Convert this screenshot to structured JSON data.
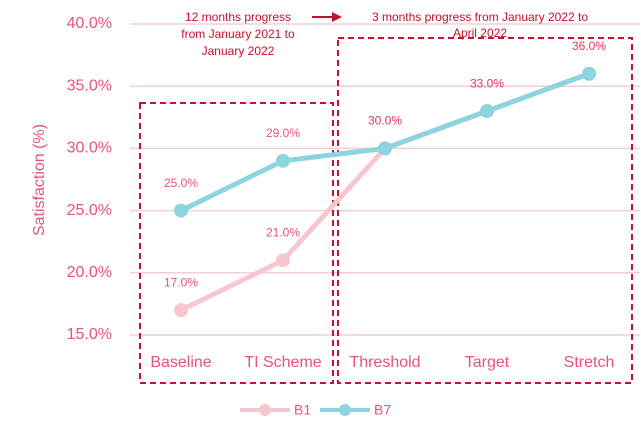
{
  "chart_data": {
    "type": "line",
    "y_label": "Satisfaction (%)",
    "categories": [
      "Baseline",
      "TI Scheme",
      "Threshold",
      "Target",
      "Stretch"
    ],
    "series": [
      {
        "name": "B1",
        "color": "#f7c6d0",
        "values": [
          17,
          21,
          30,
          33,
          36
        ],
        "value_labels": [
          "17.0%",
          "21.0%",
          "30.0%",
          "33.0%",
          "36.0%"
        ]
      },
      {
        "name": "B7",
        "color": "#8ed4e0",
        "values": [
          25,
          29,
          30,
          33,
          36
        ],
        "value_labels": [
          "25.0%",
          "29.0%",
          "30.0%",
          "33.0%",
          "36.0%"
        ]
      }
    ],
    "ylim": [
      15,
      40
    ],
    "yticks": [
      {
        "value": 15,
        "label": "15.0%"
      },
      {
        "value": 20,
        "label": "20.0%"
      },
      {
        "value": 25,
        "label": "25.0%"
      },
      {
        "value": 30,
        "label": "30.0%"
      },
      {
        "value": 35,
        "label": "35.0%"
      },
      {
        "value": 40,
        "label": "40.0%"
      }
    ],
    "grid": true,
    "legend": "bottom",
    "annotations": [
      [
        "12 months progress",
        "from January 2021 to",
        "January 2022"
      ],
      [
        "3 months progress from January 2022 to",
        "April 2022"
      ]
    ]
  }
}
